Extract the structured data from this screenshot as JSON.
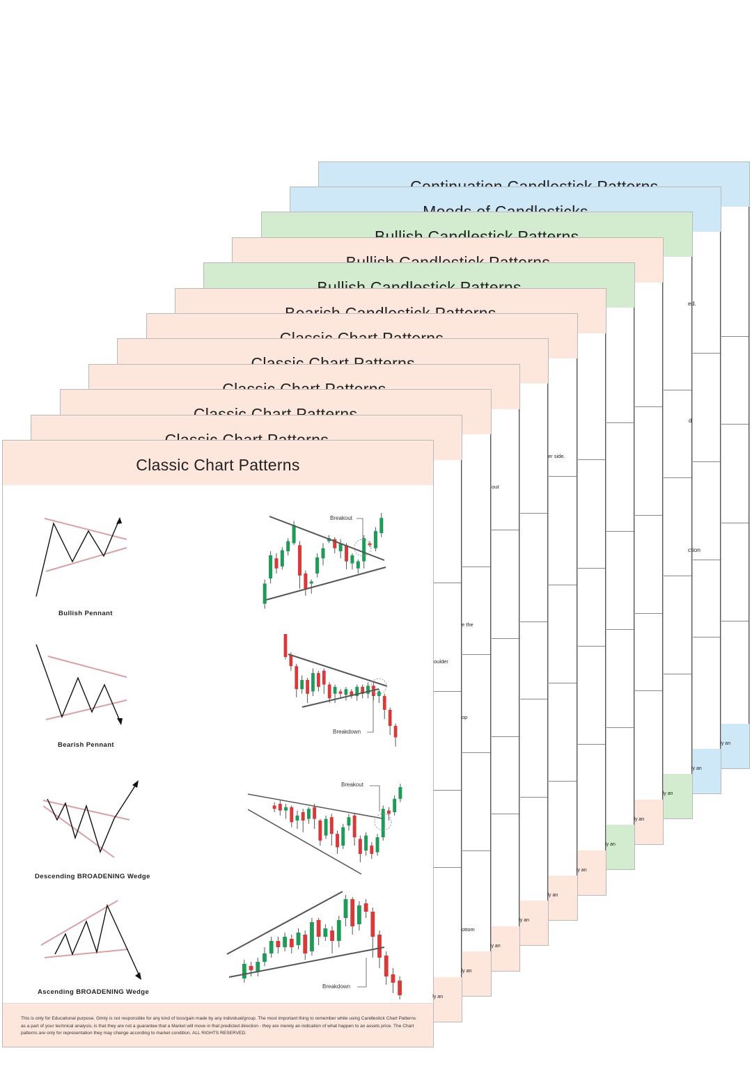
{
  "colors": {
    "peach": "#fde6dc",
    "green": "#d3ebcf",
    "blue": "#cfe8f8",
    "bull": "#1f9a57",
    "bear": "#d83a3a",
    "pink": "#d9a0a6"
  },
  "cards": [
    {
      "title": "Classic Chart Patterns",
      "theme": "peach"
    },
    {
      "title": "Classic Chart Patterns",
      "theme": "peach"
    },
    {
      "title": "Classic Chart Patterns",
      "theme": "peach"
    },
    {
      "title": "Classic Chart Patterns",
      "theme": "peach"
    },
    {
      "title": "Classic Chart Patterns",
      "theme": "peach"
    },
    {
      "title": "Classic Chart Patterns",
      "theme": "peach"
    },
    {
      "title": "Bearish Candlestick Patterns",
      "theme": "peach"
    },
    {
      "title": "Bullish Candlestick Patterns",
      "theme": "green"
    },
    {
      "title": "Bullish Candlestick Patterns",
      "theme": "peach"
    },
    {
      "title": "Bullish Candlestick Patterns",
      "theme": "green"
    },
    {
      "title": "Moods of Candlesticks",
      "theme": "blue"
    },
    {
      "title": "Continuation Candlestick Patterns",
      "theme": "blue"
    }
  ],
  "front": {
    "patterns": [
      {
        "name": "Bullish Pennant",
        "annotation": "Breakout",
        "candles": [
          [
            10,
            30,
            34,
            5
          ],
          [
            35,
            58,
            62,
            30
          ],
          [
            55,
            45,
            60,
            40
          ],
          [
            47,
            63,
            66,
            44
          ],
          [
            62,
            72,
            75,
            58
          ],
          [
            70,
            88,
            92,
            68
          ],
          [
            68,
            38,
            72,
            25
          ],
          [
            40,
            25,
            43,
            18
          ],
          [
            30,
            32,
            34,
            20
          ],
          [
            40,
            56,
            60,
            36
          ],
          [
            55,
            65,
            70,
            48
          ],
          [
            72,
            75,
            78,
            70
          ],
          [
            74,
            65,
            76,
            60
          ],
          [
            62,
            70,
            74,
            55
          ],
          [
            68,
            52,
            70,
            44
          ],
          [
            50,
            58,
            60,
            44
          ],
          [
            45,
            52,
            54,
            40
          ],
          [
            52,
            75,
            78,
            45
          ],
          [
            70,
            68,
            72,
            66
          ],
          [
            65,
            82,
            86,
            62
          ],
          [
            80,
            95,
            100,
            76
          ]
        ]
      },
      {
        "name": "Bearish Pennant",
        "annotation": "Breakdown",
        "candles": [
          [
            100,
            80,
            100,
            78
          ],
          [
            82,
            72,
            84,
            68
          ],
          [
            72,
            52,
            74,
            45
          ],
          [
            52,
            60,
            64,
            48
          ],
          [
            60,
            48,
            62,
            40
          ],
          [
            50,
            66,
            70,
            46
          ],
          [
            66,
            54,
            68,
            50
          ],
          [
            68,
            56,
            70,
            48
          ],
          [
            56,
            44,
            58,
            40
          ],
          [
            48,
            54,
            56,
            40
          ],
          [
            50,
            48,
            52,
            44
          ],
          [
            47,
            52,
            54,
            42
          ],
          [
            50,
            46,
            52,
            44
          ],
          [
            46,
            54,
            56,
            42
          ],
          [
            54,
            48,
            56,
            44
          ],
          [
            48,
            55,
            58,
            44
          ],
          [
            55,
            46,
            58,
            42
          ],
          [
            46,
            50,
            52,
            40
          ],
          [
            46,
            34,
            48,
            26
          ],
          [
            34,
            20,
            36,
            12
          ],
          [
            20,
            10,
            22,
            2
          ]
        ]
      },
      {
        "name": "Descending BROADENING Wedge",
        "annotation": "Breakout",
        "candles": [
          [
            78,
            74,
            82,
            70
          ],
          [
            80,
            72,
            84,
            66
          ],
          [
            72,
            76,
            80,
            62
          ],
          [
            76,
            58,
            78,
            52
          ],
          [
            60,
            66,
            72,
            50
          ],
          [
            70,
            60,
            74,
            46
          ],
          [
            62,
            74,
            76,
            56
          ],
          [
            76,
            62,
            80,
            50
          ],
          [
            60,
            36,
            62,
            30
          ],
          [
            42,
            62,
            66,
            38
          ],
          [
            64,
            44,
            68,
            30
          ],
          [
            44,
            28,
            48,
            20
          ],
          [
            30,
            52,
            56,
            26
          ],
          [
            54,
            64,
            68,
            48
          ],
          [
            66,
            40,
            68,
            30
          ],
          [
            38,
            20,
            42,
            10
          ],
          [
            24,
            42,
            46,
            18
          ],
          [
            30,
            20,
            34,
            14
          ],
          [
            22,
            40,
            44,
            18
          ],
          [
            40,
            74,
            78,
            36
          ],
          [
            72,
            68,
            76,
            60
          ],
          [
            70,
            86,
            90,
            66
          ],
          [
            86,
            100,
            104,
            82
          ]
        ]
      },
      {
        "name": "Ascending BROADENING Wedge",
        "annotation": "Breakdown",
        "candles": [
          [
            20,
            34,
            38,
            16
          ],
          [
            32,
            28,
            36,
            22
          ],
          [
            26,
            36,
            40,
            22
          ],
          [
            36,
            44,
            50,
            32
          ],
          [
            44,
            56,
            60,
            40
          ],
          [
            56,
            50,
            60,
            44
          ],
          [
            50,
            60,
            64,
            46
          ],
          [
            58,
            50,
            62,
            44
          ],
          [
            52,
            64,
            68,
            48
          ],
          [
            62,
            44,
            66,
            38
          ],
          [
            46,
            74,
            78,
            42
          ],
          [
            76,
            60,
            78,
            52
          ],
          [
            60,
            68,
            72,
            56
          ],
          [
            66,
            56,
            70,
            44
          ],
          [
            56,
            76,
            80,
            50
          ],
          [
            78,
            96,
            100,
            70
          ],
          [
            96,
            70,
            98,
            62
          ],
          [
            72,
            90,
            94,
            66
          ],
          [
            92,
            84,
            96,
            78
          ],
          [
            84,
            60,
            88,
            40
          ],
          [
            62,
            40,
            66,
            30
          ],
          [
            42,
            22,
            46,
            14
          ],
          [
            24,
            16,
            30,
            6
          ],
          [
            18,
            4,
            22,
            0
          ]
        ]
      }
    ],
    "disclaimer": "This is only for Educational purpose. Gimly is not responsible for any kind of loss/gain made by any individual/group. The most important thing to remember while using Candlestick Chart Patterns as a part of your technical analysis, is that they are not a guarantee that a Market will move in that predicted direction - they are merely an indication of what happen to an assets price. The Chart patterns are only for representation they may change according to market condition. ALL RIGHTS RESERVED."
  },
  "fragments": [
    "ed.",
    "d",
    "ction",
    "er side.",
    "out",
    "e the",
    "oulder",
    "op",
    "ottom",
    "ly an"
  ]
}
